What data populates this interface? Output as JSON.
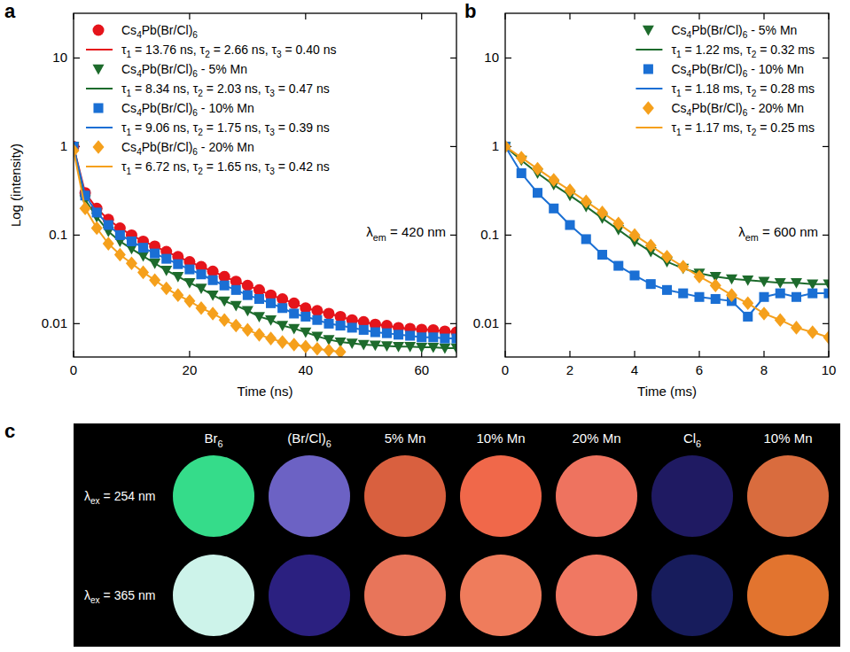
{
  "chart_data": [
    {
      "panel": "a",
      "type": "scatter",
      "log": "y",
      "x_label": "Time (ns)",
      "y_label": "Log (intensity)",
      "annotation": "λem = 420 nm",
      "legend": "upper-left",
      "xlim": [
        0,
        66
      ],
      "xticks": [
        0,
        20,
        40,
        60
      ],
      "ylim": [
        0.0042,
        32
      ],
      "yticks": [
        0.01,
        0.1,
        1,
        10
      ],
      "x": [
        0,
        2,
        4,
        6,
        8,
        10,
        12,
        14,
        16,
        18,
        20,
        22,
        24,
        26,
        28,
        30,
        32,
        34,
        36,
        38,
        40,
        42,
        44,
        46,
        48,
        50,
        52,
        54,
        56,
        58,
        60,
        62,
        64,
        66
      ],
      "series": [
        {
          "name": "Cs4Pb(Br/Cl)6",
          "fit_label": "τ1 = 13.76 ns, τ2 = 2.66 ns, τ3 = 0.40 ns",
          "color": "#e5141b",
          "marker": "circle",
          "line_style": "solid",
          "values": [
            1.0,
            0.3,
            0.2,
            0.15,
            0.12,
            0.1,
            0.085,
            0.075,
            0.065,
            0.057,
            0.05,
            0.044,
            0.039,
            0.034,
            0.03,
            0.027,
            0.024,
            0.021,
            0.019,
            0.017,
            0.015,
            0.014,
            0.013,
            0.012,
            0.011,
            0.0105,
            0.0098,
            0.0095,
            0.009,
            0.0088,
            0.0086,
            0.0085,
            0.0082,
            0.008
          ]
        },
        {
          "name": "Cs4Pb(Br/Cl)6 - 5% Mn",
          "fit_label": "τ1 = 8.34 ns, τ2 = 2.03 ns, τ3 = 0.47 ns",
          "color": "#1d6b2c",
          "marker": "triangle-down",
          "line_style": "solid",
          "values": [
            1.0,
            0.25,
            0.16,
            0.11,
            0.085,
            0.07,
            0.058,
            0.048,
            0.04,
            0.034,
            0.029,
            0.025,
            0.021,
            0.018,
            0.016,
            0.014,
            0.012,
            0.011,
            0.0095,
            0.0088,
            0.008,
            0.0072,
            0.0066,
            0.0062,
            0.006,
            0.0058,
            0.0057,
            0.0056,
            0.0055,
            0.0055,
            0.0054,
            0.0054,
            0.0053,
            0.0053
          ]
        },
        {
          "name": "Cs4Pb(Br/Cl)6 - 10% Mn",
          "fit_label": "τ1 = 9.06 ns, τ2 = 1.75 ns, τ3 = 0.39 ns",
          "color": "#1a6fd4",
          "marker": "square",
          "line_style": "solid",
          "values": [
            1.0,
            0.28,
            0.18,
            0.13,
            0.1,
            0.085,
            0.072,
            0.062,
            0.054,
            0.047,
            0.041,
            0.036,
            0.031,
            0.027,
            0.024,
            0.021,
            0.019,
            0.017,
            0.015,
            0.013,
            0.012,
            0.011,
            0.01,
            0.0095,
            0.009,
            0.0085,
            0.008,
            0.0078,
            0.0075,
            0.0073,
            0.007,
            0.007,
            0.0068,
            0.0068
          ]
        },
        {
          "name": "Cs4Pb(Br/Cl)6 - 20% Mn",
          "fit_label": "τ1 = 6.72 ns, τ2 = 1.65 ns, τ3 = 0.42 ns",
          "color": "#f5a01c",
          "marker": "diamond",
          "line_style": "solid",
          "values": [
            0.9,
            0.2,
            0.12,
            0.08,
            0.06,
            0.048,
            0.038,
            0.031,
            0.025,
            0.021,
            0.018,
            0.015,
            0.013,
            0.011,
            0.0095,
            0.0085,
            0.0075,
            0.0068,
            0.0062,
            0.0058,
            0.0055,
            0.0052,
            0.005,
            0.0048,
            null,
            null,
            null,
            null,
            null,
            null,
            null,
            null,
            null,
            null
          ]
        }
      ]
    },
    {
      "panel": "b",
      "type": "scatter",
      "log": "y",
      "x_label": "Time (ms)",
      "annotation": "λem = 600 nm",
      "legend": "upper-right",
      "xlim": [
        0,
        10
      ],
      "xticks": [
        0,
        2,
        4,
        6,
        8,
        10
      ],
      "ylim": [
        0.0042,
        32
      ],
      "yticks": [
        0.01,
        0.1,
        1,
        10
      ],
      "x": [
        0,
        0.5,
        1,
        1.5,
        2,
        2.5,
        3,
        3.5,
        4,
        4.5,
        5,
        5.5,
        6,
        6.5,
        7,
        7.5,
        8,
        8.5,
        9,
        9.5,
        10
      ],
      "series": [
        {
          "name": "Cs4Pb(Br/Cl)6 - 5% Mn",
          "fit_label": "τ1 = 1.22 ms, τ2 = 0.32 ms",
          "color": "#1d6b2c",
          "marker": "triangle-down",
          "line_style": "solid",
          "values": [
            1.0,
            0.7,
            0.5,
            0.37,
            0.28,
            0.21,
            0.155,
            0.115,
            0.085,
            0.065,
            0.05,
            0.042,
            0.037,
            0.034,
            0.032,
            0.031,
            0.03,
            0.029,
            0.029,
            0.028,
            0.028
          ]
        },
        {
          "name": "Cs4Pb(Br/Cl)6 - 10% Mn",
          "fit_label": "τ1 = 1.18 ms, τ2 = 0.28 ms",
          "color": "#1a6fd4",
          "marker": "square",
          "line_style": "solid",
          "values": [
            1.0,
            0.5,
            0.3,
            0.2,
            0.13,
            0.09,
            0.06,
            0.045,
            0.035,
            0.028,
            0.024,
            0.022,
            0.02,
            0.019,
            0.018,
            0.012,
            0.02,
            0.022,
            0.02,
            0.022,
            0.022
          ]
        },
        {
          "name": "Cs4Pb(Br/Cl)6 - 20% Mn",
          "fit_label": "τ1 = 1.17 ms, τ2 = 0.25 ms",
          "color": "#f5a01c",
          "marker": "diamond",
          "line_style": "solid",
          "values": [
            1.0,
            0.75,
            0.56,
            0.42,
            0.32,
            0.24,
            0.18,
            0.135,
            0.1,
            0.076,
            0.057,
            0.044,
            0.034,
            0.027,
            0.021,
            0.017,
            0.013,
            0.011,
            0.009,
            0.008,
            0.007
          ]
        }
      ]
    }
  ],
  "photo_panel": {
    "panel": "c",
    "columns": [
      "Br6",
      "(Br/Cl)6",
      "5% Mn",
      "10% Mn",
      "20% Mn",
      "Cl6",
      "10% Mn"
    ],
    "rows": [
      {
        "label": "λex = 254 nm",
        "colors": [
          "#35dc8a",
          "#6c62c4",
          "#d9603f",
          "#f0684a",
          "#ee735f",
          "#1f1a62",
          "#d96c3e"
        ]
      },
      {
        "label": "λex = 365 nm",
        "colors": [
          "#cdf3ea",
          "#2b2080",
          "#e8755a",
          "#ef7c5c",
          "#f07862",
          "#171c5c",
          "#e2742f"
        ]
      }
    ]
  }
}
